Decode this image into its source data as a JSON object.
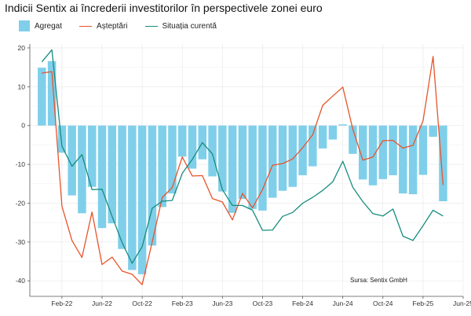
{
  "chart_data": {
    "type": "bar",
    "title": "Indicii Sentix ai încrederii investitorilor în perspectivele zonei euro",
    "source": "Sursa: Sentix GmbH",
    "xlabel": "",
    "ylabel": "",
    "ylim": [
      -44,
      21
    ],
    "yticks": [
      -40,
      -30,
      -20,
      -10,
      0,
      10,
      20
    ],
    "xlim": [
      "2021-11",
      "2025-06"
    ],
    "xticks": [
      {
        "label": "Feb-22",
        "month": "2022-02"
      },
      {
        "label": "Jun-22",
        "month": "2022-06"
      },
      {
        "label": "Oct-22",
        "month": "2022-10"
      },
      {
        "label": "Feb-23",
        "month": "2023-02"
      },
      {
        "label": "Jun-23",
        "month": "2023-06"
      },
      {
        "label": "Oct-23",
        "month": "2023-10"
      },
      {
        "label": "Feb-24",
        "month": "2024-02"
      },
      {
        "label": "Jun-24",
        "month": "2024-06"
      },
      {
        "label": "Oct-24",
        "month": "2024-10"
      },
      {
        "label": "Feb-25",
        "month": "2025-02"
      },
      {
        "label": "Jun-25",
        "month": "2025-06"
      }
    ],
    "grid": true,
    "legend_position": "top-left",
    "categories": [
      "2021-12",
      "2022-01",
      "2022-02",
      "2022-03",
      "2022-04",
      "2022-05",
      "2022-06",
      "2022-07",
      "2022-08",
      "2022-09",
      "2022-10",
      "2022-11",
      "2022-12",
      "2023-01",
      "2023-02",
      "2023-03",
      "2023-04",
      "2023-05",
      "2023-06",
      "2023-07",
      "2023-08",
      "2023-09",
      "2023-10",
      "2023-11",
      "2023-12",
      "2024-01",
      "2024-02",
      "2024-03",
      "2024-04",
      "2024-05",
      "2024-06",
      "2024-07",
      "2024-08",
      "2024-09",
      "2024-10",
      "2024-11",
      "2024-12",
      "2025-01",
      "2025-02",
      "2025-03",
      "2025-04"
    ],
    "series": [
      {
        "name": "Agregat",
        "type": "bar",
        "color": "#7fcfea",
        "values": [
          14.9,
          16.6,
          -7.0,
          -18.0,
          -22.6,
          -15.8,
          -26.4,
          -25.2,
          -31.8,
          -37.2,
          -38.3,
          -30.9,
          -21.0,
          -17.5,
          -8.0,
          -11.1,
          -8.7,
          -13.1,
          -17.0,
          -22.5,
          -18.9,
          -21.5,
          -21.9,
          -18.6,
          -16.8,
          -15.8,
          -12.8,
          -10.5,
          -5.9,
          -3.6,
          0.3,
          -7.3,
          -13.9,
          -15.4,
          -13.8,
          -12.8,
          -17.5,
          -17.7,
          -12.7,
          -2.9,
          -19.5
        ]
      },
      {
        "name": "Așteptări",
        "type": "line",
        "color": "#e8532a",
        "values": [
          13.5,
          13.9,
          -20.8,
          -29.6,
          -34.0,
          -22.3,
          -35.8,
          -33.9,
          -37.5,
          -38.3,
          -41.0,
          -30.0,
          -18.5,
          -16.0,
          -8.1,
          -13.0,
          -12.9,
          -18.8,
          -19.7,
          -24.3,
          -17.5,
          -21.2,
          -16.5,
          -10.2,
          -9.8,
          -8.6,
          -5.7,
          -2.4,
          5.2,
          7.6,
          9.9,
          -0.9,
          -8.9,
          -8.1,
          -3.9,
          -3.8,
          -5.8,
          -5.1,
          1.2,
          17.8,
          -15.3
        ]
      },
      {
        "name": "Situația curentă",
        "type": "line",
        "color": "#168c7e",
        "values": [
          16.4,
          19.5,
          -5.3,
          -10.5,
          -7.5,
          -16.5,
          -16.4,
          -23.4,
          -30.2,
          -35.5,
          -31.2,
          -21.3,
          -19.5,
          -19.3,
          -12.3,
          -8.7,
          -4.4,
          -7.3,
          -16.5,
          -20.6,
          -20.6,
          -21.8,
          -27.0,
          -26.9,
          -23.4,
          -22.4,
          -20.0,
          -18.5,
          -16.7,
          -14.5,
          -9.2,
          -15.9,
          -19.6,
          -22.7,
          -23.3,
          -21.5,
          -28.5,
          -29.6,
          -25.8,
          -21.8,
          -23.3
        ]
      }
    ]
  },
  "legend": {
    "items": [
      {
        "label": "Agregat",
        "kind": "box",
        "color": "#7fcfea"
      },
      {
        "label": "Așteptări",
        "kind": "line",
        "color": "#e8532a"
      },
      {
        "label": "Situația curentă",
        "kind": "line",
        "color": "#168c7e"
      }
    ]
  }
}
